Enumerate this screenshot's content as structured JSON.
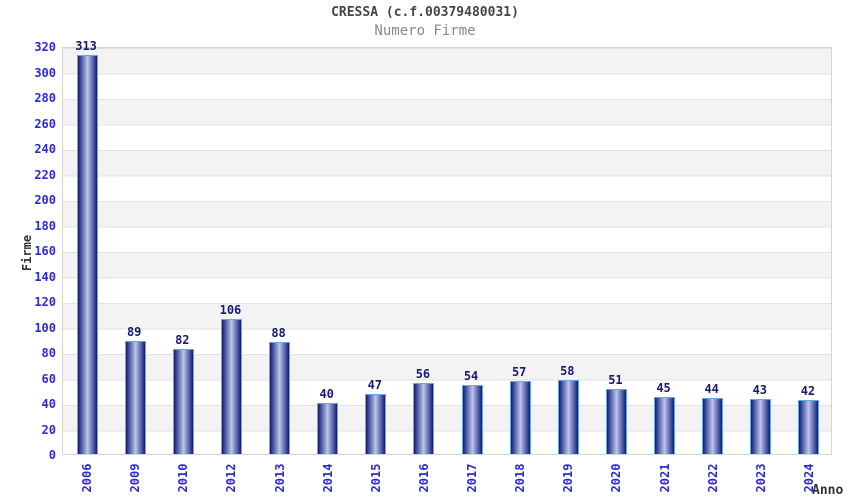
{
  "title": "CRESSA (c.f.00379480031)",
  "subtitle": "Numero Firme",
  "chart_data": {
    "type": "bar",
    "title": "CRESSA (c.f.00379480031)",
    "subtitle": "Numero Firme",
    "xlabel": "Anno",
    "ylabel": "Firme",
    "categories": [
      "2006",
      "2009",
      "2010",
      "2012",
      "2013",
      "2014",
      "2015",
      "2016",
      "2017",
      "2018",
      "2019",
      "2020",
      "2021",
      "2022",
      "2023",
      "2024"
    ],
    "values": [
      313,
      89,
      82,
      106,
      88,
      40,
      47,
      56,
      54,
      57,
      58,
      51,
      45,
      44,
      43,
      42
    ],
    "ylim": [
      0,
      320
    ],
    "yticks": [
      0,
      20,
      40,
      60,
      80,
      100,
      120,
      140,
      160,
      180,
      200,
      220,
      240,
      260,
      280,
      300,
      320
    ],
    "bar_value_labels": true,
    "grid": "horizontal-bands",
    "legend": "none"
  },
  "colors": {
    "tick_label_blue": "#2b2bd0",
    "value_label_navy": "#191975",
    "title_gray": "#444444",
    "subtitle_gray": "#888888",
    "axis_title_dark": "#333333",
    "band_gray": "#f3f3f3",
    "band_white": "#ffffff",
    "gridline": "#e2e2e2",
    "plot_border": "#d4d4d4",
    "bar_border_lightblue": "#64a8e8",
    "bar_gradient_dark": "#141a6e",
    "bar_gradient_mid": "#4d5ba6",
    "bar_gradient_light": "#bcc4e8"
  }
}
